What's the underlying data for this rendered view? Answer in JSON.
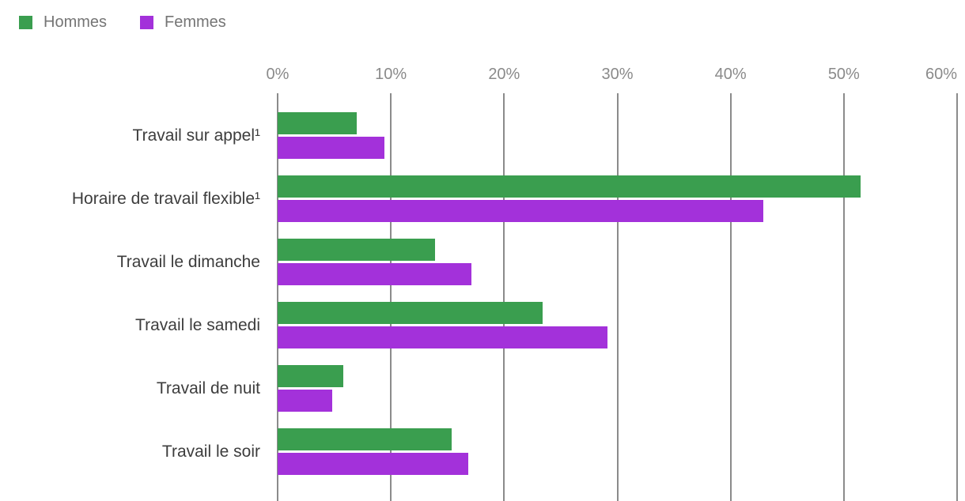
{
  "chart_data": {
    "type": "bar",
    "orientation": "horizontal",
    "title": "",
    "categories": [
      "Travail sur appel¹",
      "Horaire de travail flexible¹",
      "Travail le dimanche",
      "Travail le samedi",
      "Travail de nuit",
      "Travail le soir"
    ],
    "series": [
      {
        "name": "Hommes",
        "color": "#3a9e4f",
        "values": [
          7.0,
          51.5,
          13.9,
          23.4,
          5.8,
          15.4
        ]
      },
      {
        "name": "Femmes",
        "color": "#a331da",
        "values": [
          9.4,
          42.9,
          17.1,
          29.1,
          4.8,
          16.8
        ]
      }
    ],
    "x_tick_labels": [
      "0%",
      "10%",
      "20%",
      "30%",
      "40%",
      "50%",
      "60%"
    ],
    "xlim": [
      0,
      60
    ],
    "unit": "%",
    "grid": true,
    "legend_position": "top-left",
    "gridline_color": "#8b8b8b",
    "axis_label_color": "#8a8a8a",
    "category_label_color": "#3d3d3d",
    "legend_text_color": "#757575"
  }
}
